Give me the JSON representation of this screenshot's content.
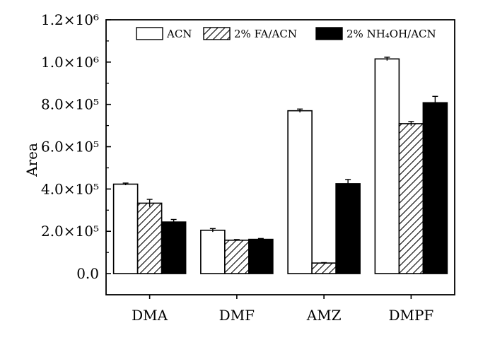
{
  "chart_data": {
    "type": "bar",
    "categories": [
      "DMA",
      "DMF",
      "AMZ",
      "DMPF"
    ],
    "ylabel": "Area",
    "ylim": [
      -100000,
      1200000
    ],
    "yticks": [
      0,
      200000,
      400000,
      600000,
      800000,
      1000000,
      1200000
    ],
    "ytick_labels": [
      "0.0",
      "2.0×10⁵",
      "4.0×10⁵",
      "6.0×10⁵",
      "8.0×10⁵",
      "1.0×10⁶",
      "1.2×10⁶"
    ],
    "legend_position": "top",
    "grid": false,
    "series": [
      {
        "name": "ACN",
        "style": "open",
        "values": [
          423000,
          205000,
          770000,
          1015000
        ],
        "errors": [
          5000,
          8000,
          8000,
          8000
        ]
      },
      {
        "name": "2% FA/ACN",
        "style": "hatched",
        "values": [
          333000,
          158000,
          50000,
          709000
        ],
        "errors": [
          18000,
          3000,
          2000,
          10000
        ]
      },
      {
        "name": "2% NH₄OH/ACN",
        "style": "solid",
        "values": [
          244000,
          162000,
          425000,
          808000
        ],
        "errors": [
          12000,
          4000,
          20000,
          30000
        ]
      }
    ]
  }
}
